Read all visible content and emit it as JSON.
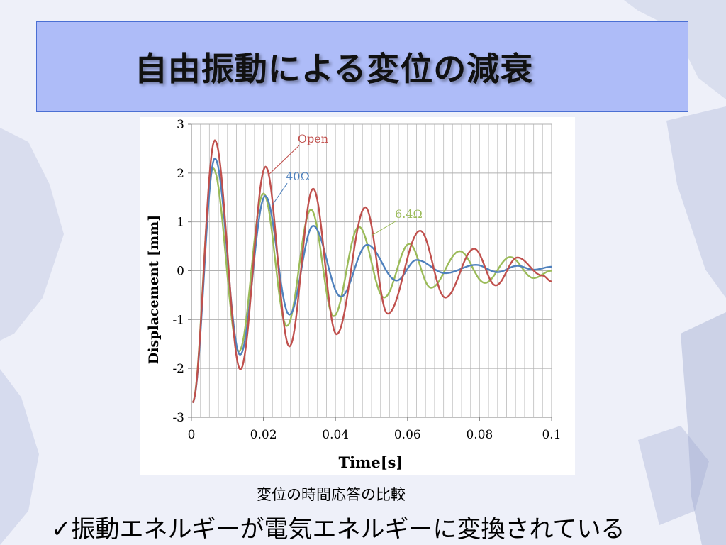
{
  "slide": {
    "title": "自由振動による変位の減衰",
    "caption": "変位の時間応答の比較",
    "conclusion": "振動エネルギーが電気エネルギーに変換されている",
    "check_icon": "checkmark-icon",
    "colors": {
      "title_fill": "#aebcf8",
      "title_border": "#4a6fd3",
      "background": "#eef0f9"
    }
  },
  "chart_data": {
    "type": "line",
    "xlabel": "Time[s]",
    "ylabel": "Displacement [mm]",
    "xlim": [
      0,
      0.1
    ],
    "ylim": [
      -3,
      3
    ],
    "x_ticks": [
      0,
      0.02,
      0.04,
      0.06,
      0.08,
      0.1
    ],
    "x_tick_labels": [
      "0",
      "0.02",
      "0.04",
      "0.06",
      "0.08",
      "0.1"
    ],
    "y_ticks": [
      -3,
      -2,
      -1,
      0,
      1,
      2,
      3
    ],
    "y_tick_labels": [
      "-3",
      "-2",
      "-1",
      "0",
      "1",
      "2",
      "3"
    ],
    "grid": true,
    "legend": "inline annotations",
    "series": [
      {
        "name": "Open",
        "color": "#c0504d",
        "x": [
          0.0003,
          0.0065,
          0.0136,
          0.0206,
          0.0272,
          0.0338,
          0.0403,
          0.0483,
          0.0545,
          0.0635,
          0.0705,
          0.0785,
          0.0845,
          0.0905,
          0.0975,
          0.1
        ],
        "y": [
          -2.7,
          2.67,
          -2.02,
          2.13,
          -1.55,
          1.68,
          -1.3,
          1.3,
          -0.88,
          0.82,
          -0.55,
          0.45,
          -0.3,
          0.27,
          -0.1,
          -0.22
        ]
      },
      {
        "name": "40Ω",
        "color": "#4f81bd",
        "x": [
          0.0003,
          0.0065,
          0.0135,
          0.0205,
          0.0272,
          0.0338,
          0.0415,
          0.0488,
          0.057,
          0.0625,
          0.0705,
          0.079,
          0.085,
          0.0905,
          0.095,
          0.1
        ],
        "y": [
          -2.7,
          2.3,
          -1.72,
          1.53,
          -0.9,
          0.92,
          -0.53,
          0.53,
          -0.2,
          0.22,
          -0.05,
          0.12,
          -0.03,
          0.1,
          0.02,
          0.08
        ]
      },
      {
        "name": "6.4Ω",
        "color": "#9bbb59",
        "x": [
          0.0003,
          0.006,
          0.0132,
          0.02,
          0.0265,
          0.0332,
          0.0395,
          0.0465,
          0.0535,
          0.0605,
          0.0665,
          0.0745,
          0.0815,
          0.0885,
          0.095,
          0.1
        ],
        "y": [
          -2.7,
          2.1,
          -1.65,
          1.58,
          -1.13,
          1.25,
          -0.93,
          0.9,
          -0.55,
          0.55,
          -0.35,
          0.4,
          -0.25,
          0.28,
          -0.15,
          0.0
        ]
      }
    ],
    "annotations": [
      {
        "text": "Open",
        "series": 0,
        "color": "#c0504d",
        "x": 0.0295,
        "y": 2.62,
        "target": [
          0.0212,
          1.95
        ]
      },
      {
        "text": "40Ω",
        "series": 1,
        "color": "#4f81bd",
        "x": 0.0262,
        "y": 1.85,
        "target": [
          0.0225,
          1.35
        ]
      },
      {
        "text": "6.4Ω",
        "series": 2,
        "color": "#9bbb59",
        "x": 0.0565,
        "y": 1.08,
        "target": [
          0.05,
          0.72
        ]
      }
    ]
  }
}
